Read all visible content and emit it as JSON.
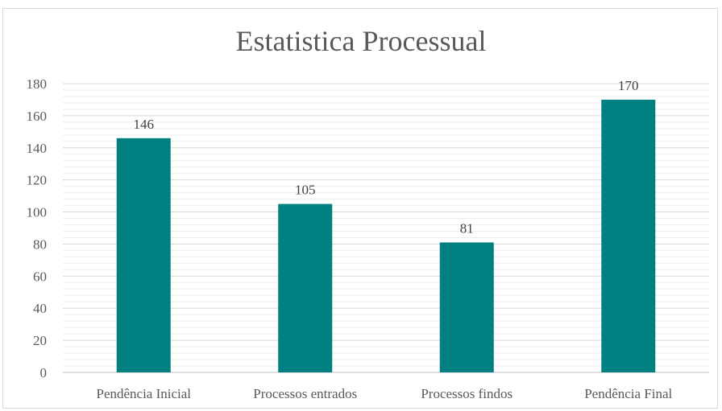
{
  "chart_data": {
    "type": "bar",
    "title": "Estatistica Processual",
    "categories": [
      "Pendência Inicial",
      "Processos entrados",
      "Processos findos",
      "Pendência Final"
    ],
    "values": [
      146,
      105,
      81,
      170
    ],
    "data_labels": [
      "146",
      "105",
      "81",
      "170"
    ],
    "y_ticks": [
      "0",
      "20",
      "40",
      "60",
      "80",
      "100",
      "120",
      "140",
      "160",
      "180"
    ],
    "xlabel": "",
    "ylabel": "",
    "ylim": [
      0,
      180
    ],
    "major_grid_step": 20,
    "minor_grid_step": 4,
    "grid": true,
    "legend": "none",
    "colors": {
      "bar": "#008080",
      "major_grid": "#d9d9d9",
      "minor_grid": "#ededed",
      "axis": "#bfbfbf",
      "text": "#595959"
    }
  }
}
